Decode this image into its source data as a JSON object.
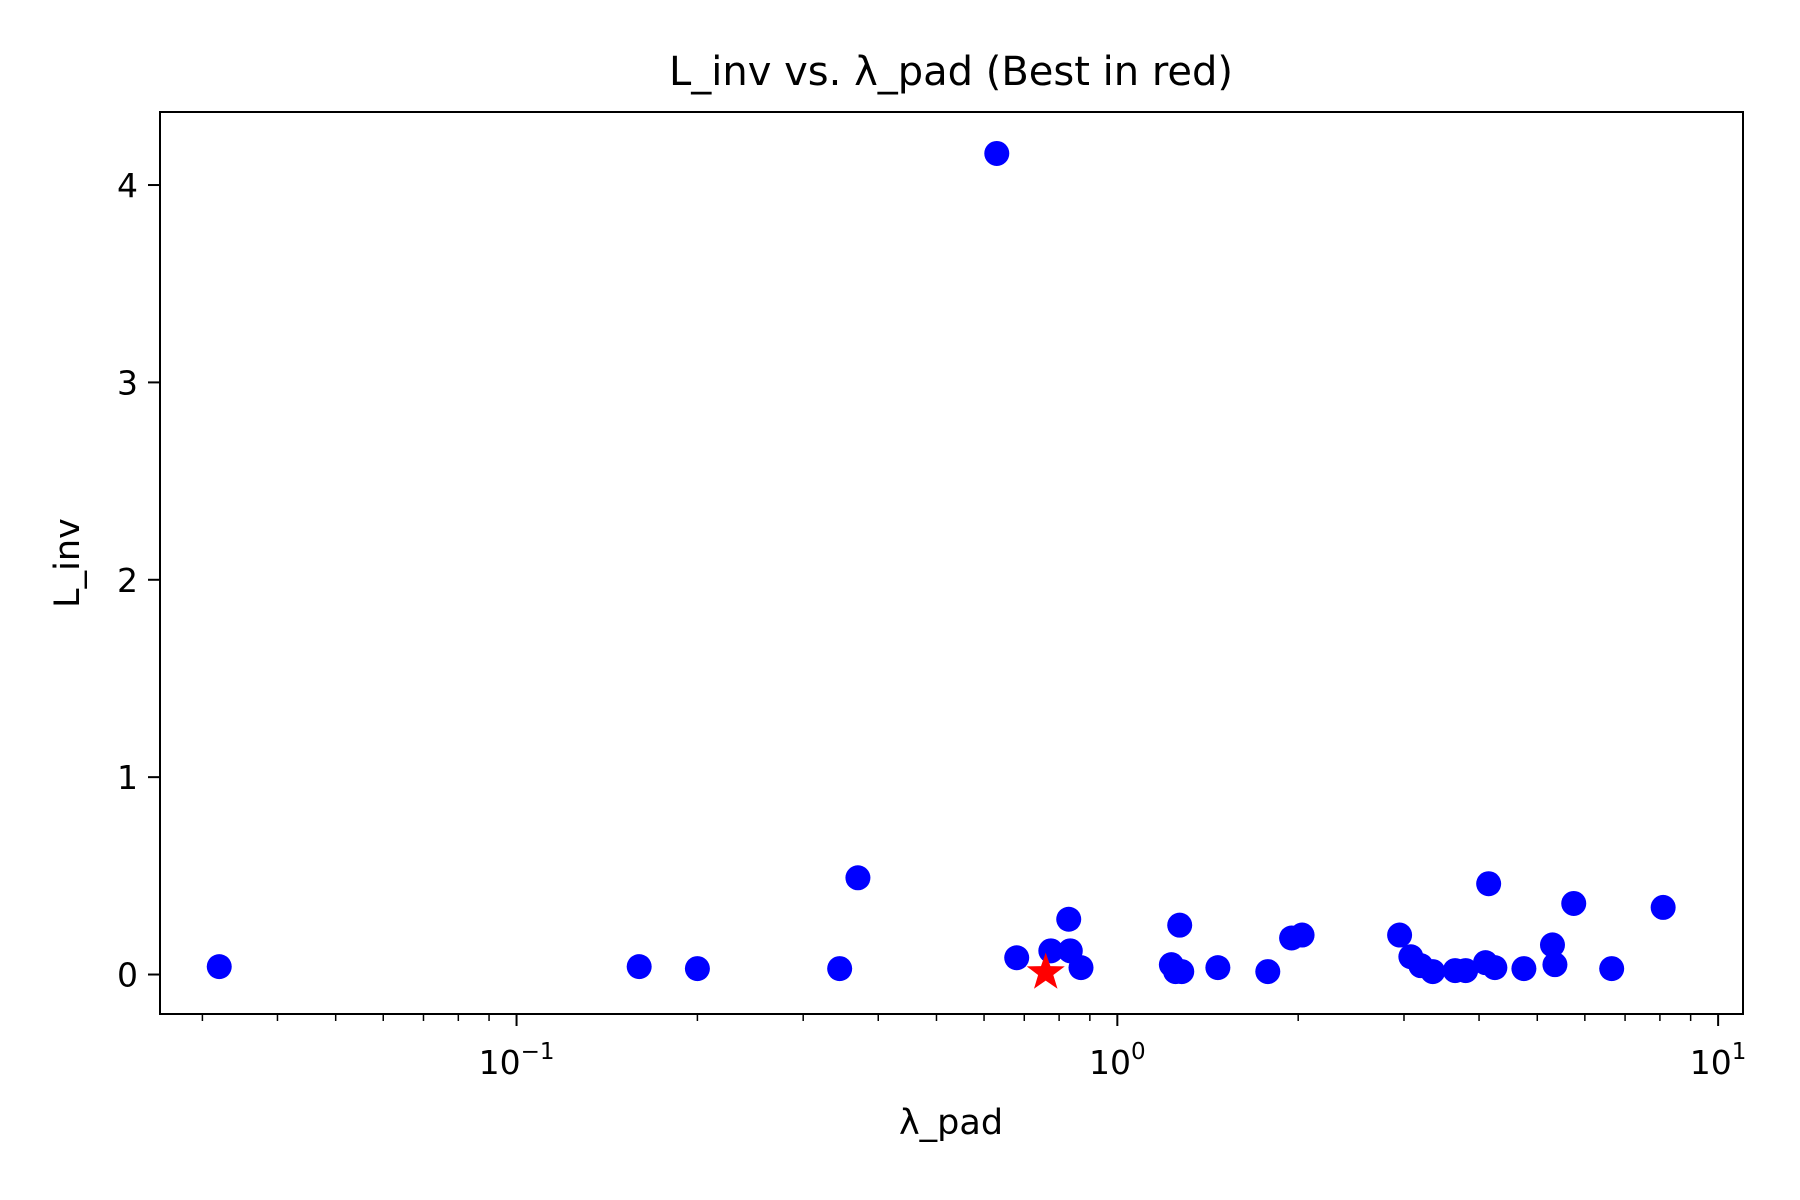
{
  "chart_data": {
    "type": "scatter",
    "title": "L_inv vs. λ_pad (Best in red)",
    "xlabel": "λ_pad",
    "ylabel": "L_inv",
    "xscale": "log",
    "xlim": [
      0.0255,
      11
    ],
    "ylim": [
      -0.2,
      4.37
    ],
    "grid": false,
    "x_ticks": [
      {
        "value": 0.1,
        "base": "10",
        "exp": "−1"
      },
      {
        "value": 1,
        "base": "10",
        "exp": "0"
      },
      {
        "value": 10,
        "base": "10",
        "exp": "1"
      }
    ],
    "y_ticks": [
      {
        "value": 0,
        "label": "0"
      },
      {
        "value": 1,
        "label": "1"
      },
      {
        "value": 2,
        "label": "2"
      },
      {
        "value": 3,
        "label": "3"
      },
      {
        "value": 4,
        "label": "4"
      }
    ],
    "colors": {
      "points": "#0000ff",
      "best": "#ff0000"
    },
    "points": [
      {
        "x": 0.032,
        "y": 0.04
      },
      {
        "x": 0.16,
        "y": 0.04
      },
      {
        "x": 0.2,
        "y": 0.03
      },
      {
        "x": 0.345,
        "y": 0.03
      },
      {
        "x": 0.37,
        "y": 0.49
      },
      {
        "x": 0.63,
        "y": 4.16
      },
      {
        "x": 0.68,
        "y": 0.085
      },
      {
        "x": 0.775,
        "y": 0.12
      },
      {
        "x": 0.83,
        "y": 0.28
      },
      {
        "x": 0.835,
        "y": 0.12
      },
      {
        "x": 0.87,
        "y": 0.035
      },
      {
        "x": 1.23,
        "y": 0.05
      },
      {
        "x": 1.25,
        "y": 0.015
      },
      {
        "x": 1.27,
        "y": 0.25
      },
      {
        "x": 1.28,
        "y": 0.015
      },
      {
        "x": 1.47,
        "y": 0.035
      },
      {
        "x": 1.78,
        "y": 0.015
      },
      {
        "x": 1.95,
        "y": 0.185
      },
      {
        "x": 2.03,
        "y": 0.2
      },
      {
        "x": 2.95,
        "y": 0.2
      },
      {
        "x": 3.08,
        "y": 0.09
      },
      {
        "x": 3.2,
        "y": 0.045
      },
      {
        "x": 3.35,
        "y": 0.015
      },
      {
        "x": 3.65,
        "y": 0.02
      },
      {
        "x": 3.8,
        "y": 0.02
      },
      {
        "x": 4.1,
        "y": 0.06
      },
      {
        "x": 4.15,
        "y": 0.46
      },
      {
        "x": 4.25,
        "y": 0.035
      },
      {
        "x": 4.75,
        "y": 0.03
      },
      {
        "x": 5.3,
        "y": 0.15
      },
      {
        "x": 5.35,
        "y": 0.05
      },
      {
        "x": 5.75,
        "y": 0.36
      },
      {
        "x": 6.65,
        "y": 0.03
      },
      {
        "x": 8.1,
        "y": 0.34
      }
    ],
    "best": {
      "x": 0.76,
      "y": 0.01
    }
  }
}
